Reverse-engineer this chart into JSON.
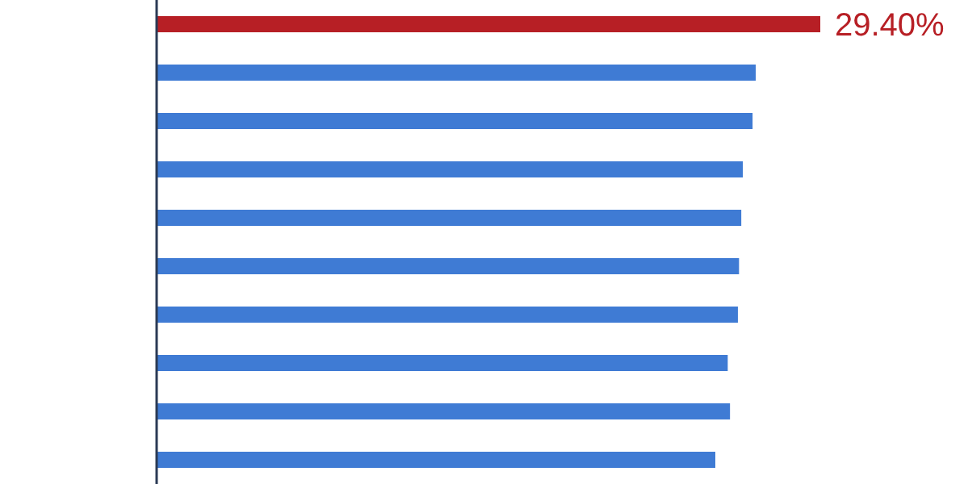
{
  "chart_data": {
    "type": "bar",
    "orientation": "horizontal",
    "categories": [
      null,
      null,
      null,
      null,
      null,
      null,
      null,
      null,
      null,
      null
    ],
    "values": [
      29.4,
      26.54,
      26.4,
      25.97,
      25.9,
      25.8,
      25.75,
      25.3,
      25.4,
      24.75
    ],
    "colors": [
      "#b71f25",
      "#3f7bd4",
      "#3f7bd4",
      "#3f7bd4",
      "#3f7bd4",
      "#3f7bd4",
      "#3f7bd4",
      "#3f7bd4",
      "#3f7bd4",
      "#3f7bd4"
    ],
    "value_labels": [
      "29.40%",
      null,
      null,
      null,
      null,
      null,
      null,
      null,
      null,
      null
    ]
  }
}
